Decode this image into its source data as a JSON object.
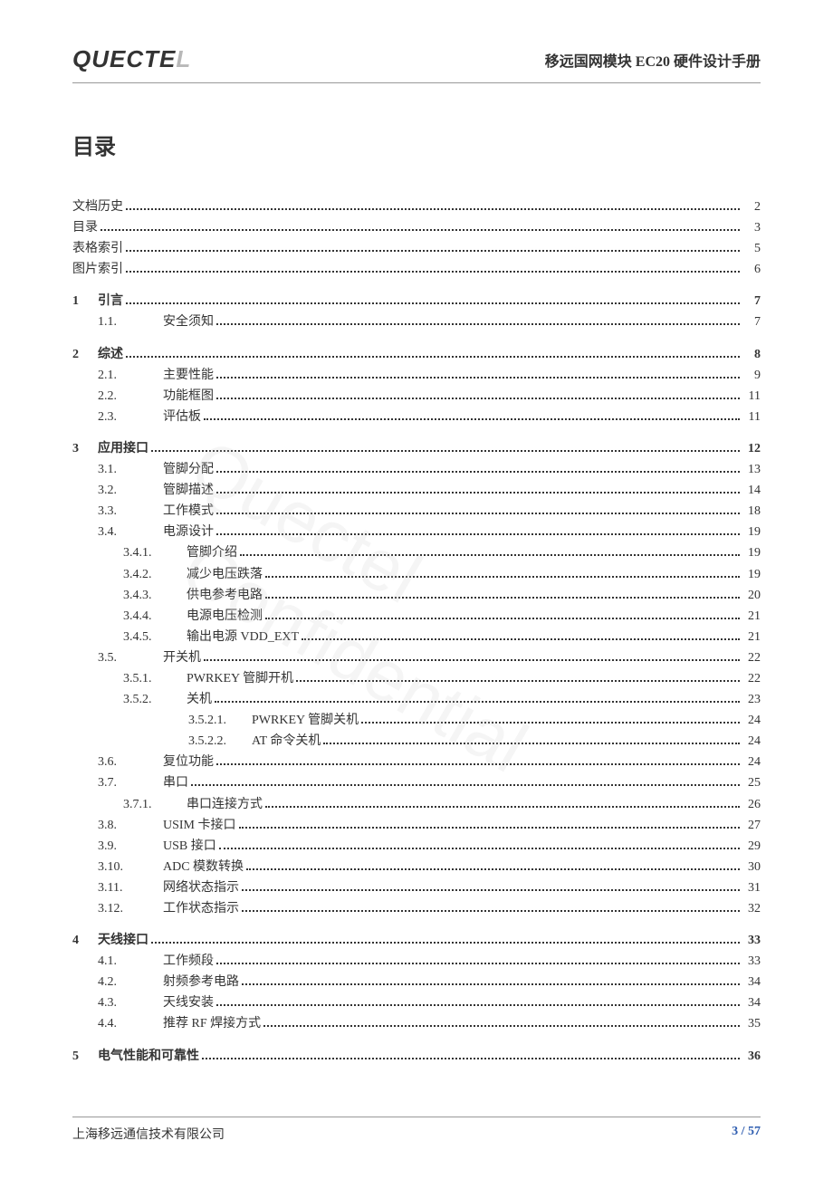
{
  "header": {
    "logo_main": "QUECTE",
    "logo_fade": "L",
    "doc_title": "移远国网模块 EC20 硬件设计手册"
  },
  "title": "目录",
  "toc": {
    "front": [
      {
        "label": "文档历史",
        "page": "2"
      },
      {
        "label": "目录",
        "page": "3"
      },
      {
        "label": "表格索引",
        "page": "5"
      },
      {
        "label": "图片索引",
        "page": "6"
      }
    ],
    "ch1": {
      "num": "1",
      "label": "引言",
      "page": "7",
      "items": [
        {
          "num": "1.1.",
          "label": "安全须知",
          "page": "7"
        }
      ]
    },
    "ch2": {
      "num": "2",
      "label": "综述",
      "page": "8",
      "items": [
        {
          "num": "2.1.",
          "label": "主要性能",
          "page": "9"
        },
        {
          "num": "2.2.",
          "label": "功能框图",
          "page": "11"
        },
        {
          "num": "2.3.",
          "label": "评估板",
          "page": "11"
        }
      ]
    },
    "ch3": {
      "num": "3",
      "label": "应用接口",
      "page": "12",
      "items": [
        {
          "num": "3.1.",
          "label": "管脚分配",
          "page": "13"
        },
        {
          "num": "3.2.",
          "label": "管脚描述",
          "page": "14"
        },
        {
          "num": "3.3.",
          "label": "工作模式",
          "page": "18"
        },
        {
          "num": "3.4.",
          "label": "电源设计",
          "page": "19"
        }
      ],
      "sub34": [
        {
          "num": "3.4.1.",
          "label": "管脚介绍",
          "page": "19"
        },
        {
          "num": "3.4.2.",
          "label": "减少电压跌落",
          "page": "19"
        },
        {
          "num": "3.4.3.",
          "label": "供电参考电路",
          "page": "20"
        },
        {
          "num": "3.4.4.",
          "label": "电源电压检测",
          "page": "21"
        },
        {
          "num": "3.4.5.",
          "label": "输出电源 VDD_EXT",
          "page": "21"
        }
      ],
      "item35": {
        "num": "3.5.",
        "label": "开关机",
        "page": "22"
      },
      "sub35": [
        {
          "num": "3.5.1.",
          "label": "PWRKEY 管脚开机",
          "page": "22"
        },
        {
          "num": "3.5.2.",
          "label": "关机",
          "page": "23"
        }
      ],
      "sub352": [
        {
          "num": "3.5.2.1.",
          "label": "PWRKEY 管脚关机",
          "page": "24"
        },
        {
          "num": "3.5.2.2.",
          "label": "AT 命令关机",
          "page": "24"
        }
      ],
      "item36": {
        "num": "3.6.",
        "label": "复位功能",
        "page": "24"
      },
      "item37": {
        "num": "3.7.",
        "label": "串口",
        "page": "25"
      },
      "sub37": [
        {
          "num": "3.7.1.",
          "label": "串口连接方式",
          "page": "26"
        }
      ],
      "tail": [
        {
          "num": "3.8.",
          "label": "USIM 卡接口",
          "page": "27"
        },
        {
          "num": "3.9.",
          "label": "USB 接口",
          "page": "29"
        },
        {
          "num": "3.10.",
          "label": "ADC 模数转换",
          "page": "30"
        },
        {
          "num": "3.11.",
          "label": "网络状态指示",
          "page": "31"
        },
        {
          "num": "3.12.",
          "label": "工作状态指示",
          "page": "32"
        }
      ]
    },
    "ch4": {
      "num": "4",
      "label": "天线接口",
      "page": "33",
      "items": [
        {
          "num": "4.1.",
          "label": "工作频段",
          "page": "33"
        },
        {
          "num": "4.2.",
          "label": "射频参考电路",
          "page": "34"
        },
        {
          "num": "4.3.",
          "label": "天线安装",
          "page": "34"
        },
        {
          "num": "4.4.",
          "label": "推荐 RF 焊接方式",
          "page": "35"
        }
      ]
    },
    "ch5": {
      "num": "5",
      "label": "电气性能和可靠性",
      "page": "36"
    }
  },
  "footer": {
    "company": "上海移远通信技术有限公司",
    "page_current": "3",
    "page_sep": " / ",
    "page_total": "57"
  },
  "watermark": {
    "line1": "Quectel",
    "line2": "Confidential"
  }
}
